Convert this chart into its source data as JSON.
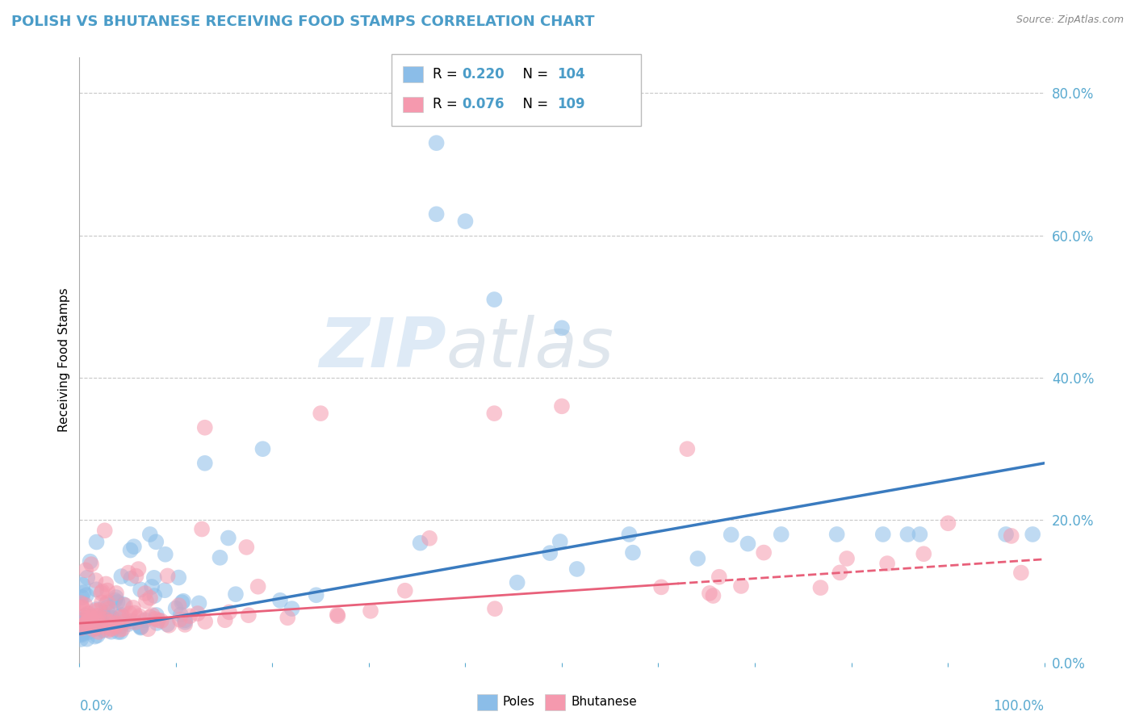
{
  "title": "POLISH VS BHUTANESE RECEIVING FOOD STAMPS CORRELATION CHART",
  "source_text": "Source: ZipAtlas.com",
  "ylabel": "Receiving Food Stamps",
  "watermark_zip": "ZIP",
  "watermark_atlas": "atlas",
  "legend_r1": "0.220",
  "legend_n1": "104",
  "legend_r2": "0.076",
  "legend_n2": "109",
  "poles_color": "#8bbde8",
  "bhutanese_color": "#f599ae",
  "poles_line_color": "#3a7bbf",
  "bhutanese_line_color": "#e8607a",
  "title_color": "#4a9cc8",
  "axis_label_color": "#5aaad0",
  "legend_stat_color": "#4a9cc8",
  "background_color": "#ffffff",
  "grid_color": "#c8c8c8",
  "ylim": [
    0,
    0.85
  ],
  "xlim": [
    0,
    1.0
  ],
  "yticks": [
    0.0,
    0.2,
    0.4,
    0.6,
    0.8
  ],
  "xticks": [
    0.0,
    0.1,
    0.2,
    0.3,
    0.4,
    0.5,
    0.6,
    0.7,
    0.8,
    0.9,
    1.0
  ]
}
